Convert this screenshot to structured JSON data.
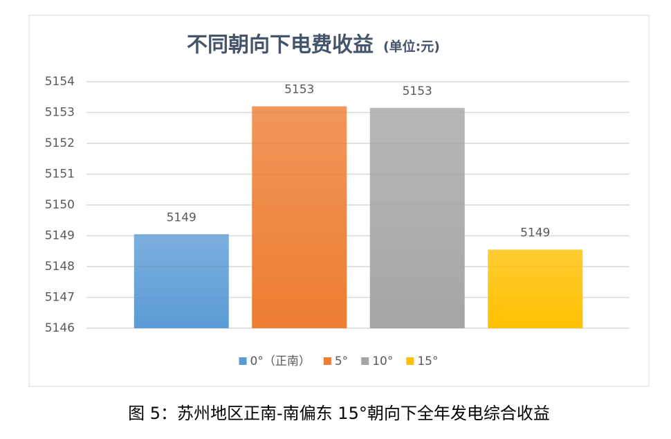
{
  "chart_data": {
    "type": "bar",
    "title": "不同朝向下电费收益",
    "title_unit": "(单位:元)",
    "categories": [
      "0°（正南）",
      "5°",
      "10°",
      "15°"
    ],
    "values": [
      5149.05,
      5153.2,
      5153.15,
      5148.55
    ],
    "value_labels": [
      "5149",
      "5153",
      "5153",
      "5149"
    ],
    "colors": [
      "#5b9bd5",
      "#ed7d31",
      "#a5a5a5",
      "#ffc000"
    ],
    "ylim": [
      5146,
      5154
    ],
    "yticks": [
      5146,
      5147,
      5148,
      5149,
      5150,
      5151,
      5152,
      5153,
      5154
    ],
    "grid": true,
    "legend": "bottom"
  },
  "caption": "图 5：苏州地区正南-南偏东 15°朝向下全年发电综合收益"
}
